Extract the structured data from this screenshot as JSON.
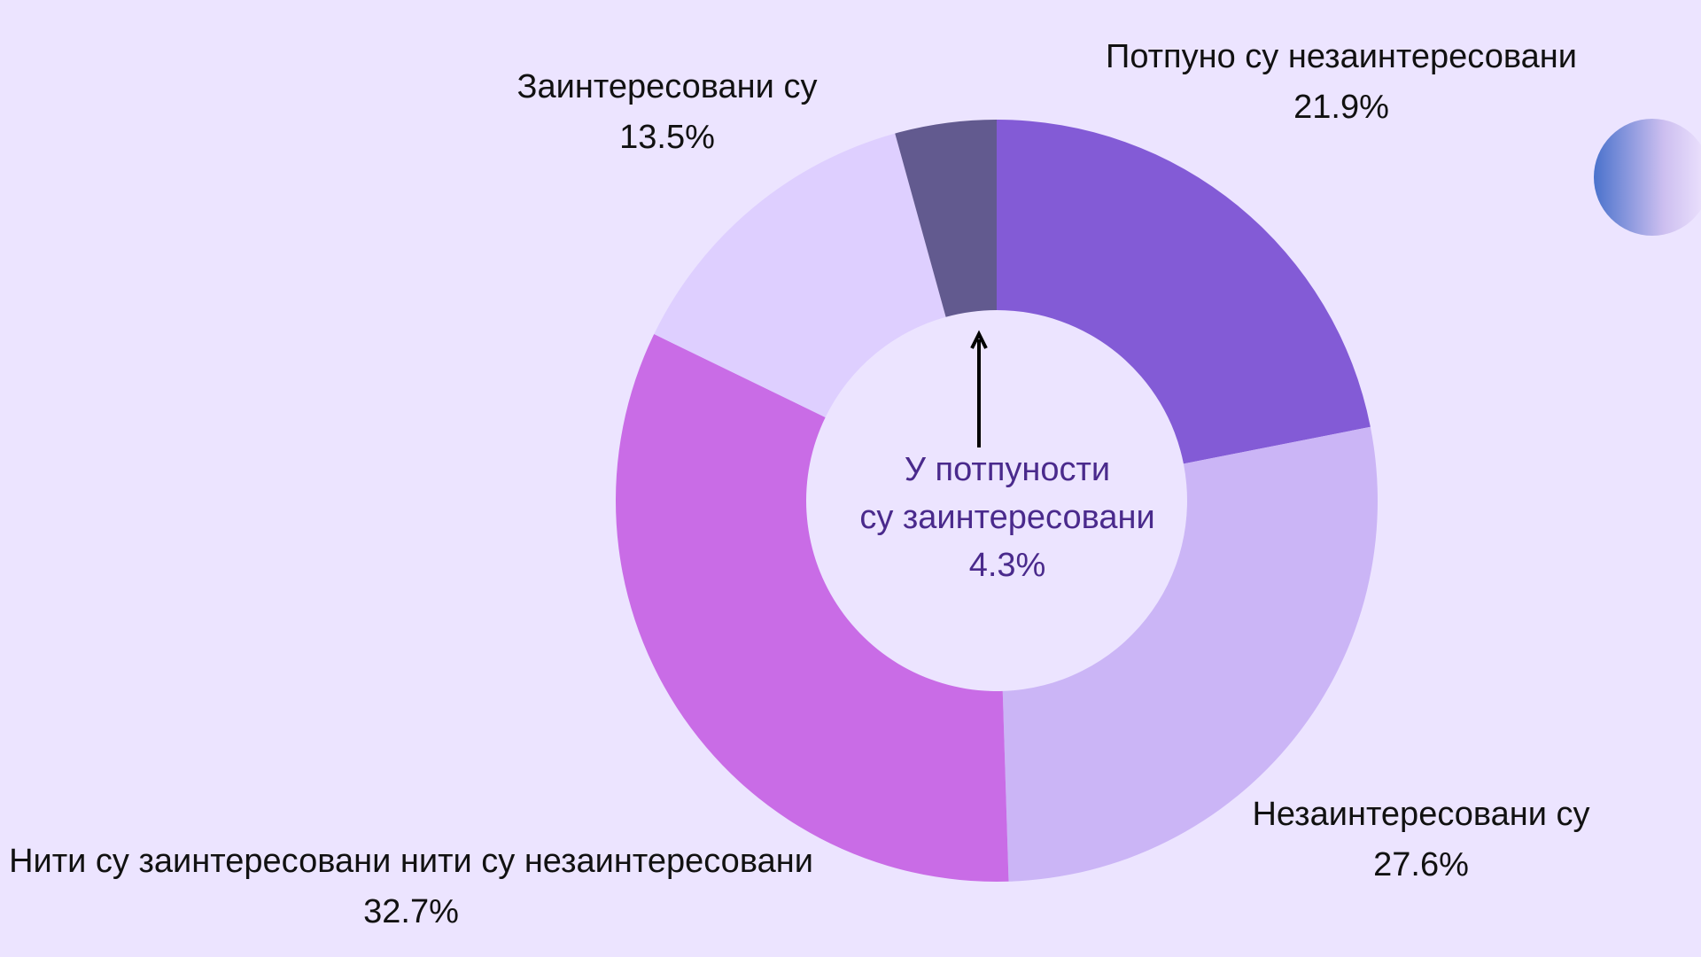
{
  "chart_data": {
    "type": "pie",
    "donut": true,
    "slices": [
      {
        "name": "Потпуно су незаинтересовани",
        "value": 21.9,
        "value_label": "21.9%",
        "color": "#835bd6"
      },
      {
        "name": "Незаинтересовани су",
        "value": 27.6,
        "value_label": "27.6%",
        "color": "#cbb5f6"
      },
      {
        "name": "Нити су заинтересовани нити су незаинтересовани",
        "value": 32.7,
        "value_label": "32.7%",
        "color": "#c96ce6"
      },
      {
        "name": "Заинтересовани су",
        "value": 13.5,
        "value_label": "13.5%",
        "color": "#decfff"
      },
      {
        "name": "У потпуности су заинтересовани",
        "value": 4.3,
        "value_label": "4.3%",
        "color": "#625a8f"
      }
    ],
    "start": "top",
    "direction": "clockwise"
  },
  "colors": {
    "background": "#ece4ff",
    "label_text": "#111111",
    "center_text": "#4a2a8c",
    "arrow": "#000000",
    "decor_circle_start": "#4a72cc",
    "decor_circle_end": "#f0e6ff"
  }
}
